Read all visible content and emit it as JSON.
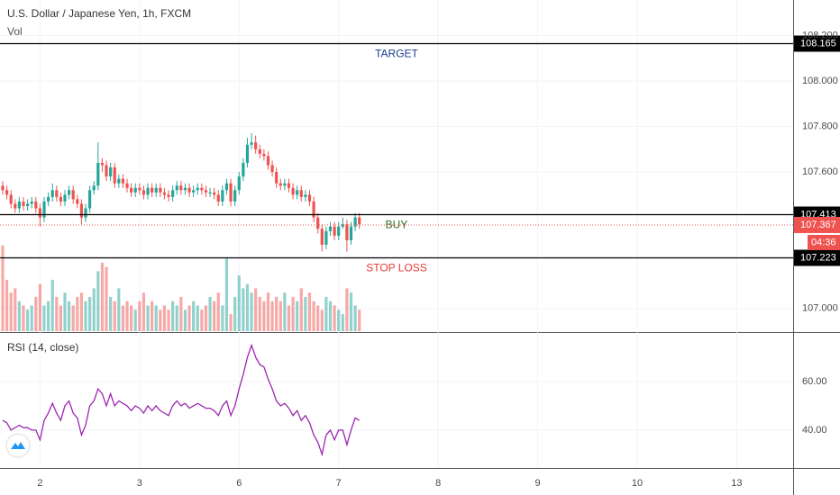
{
  "chart_data": {
    "type": "candlestick",
    "title": "U.S. Dollar / Japanese Yen, 1h, FXCM",
    "volume_label": "Vol",
    "up_color": "#26a69a",
    "down_color": "#ef5350",
    "grid": true,
    "xlim": [
      -0.65,
      190.6
    ],
    "xticks": [
      {
        "value": 9,
        "label": "2"
      },
      {
        "value": 33,
        "label": "3"
      },
      {
        "value": 57,
        "label": "6"
      },
      {
        "value": 81,
        "label": "7"
      },
      {
        "value": 105,
        "label": "8"
      },
      {
        "value": 129,
        "label": "9"
      },
      {
        "value": 153,
        "label": "10"
      },
      {
        "value": 177,
        "label": "13"
      }
    ],
    "ylim": [
      106.9,
      108.356
    ],
    "yticks": [
      {
        "value": 108.2,
        "label": "108.200"
      },
      {
        "value": 108.0,
        "label": "108.000"
      },
      {
        "value": 107.8,
        "label": "107.800"
      },
      {
        "value": 107.6,
        "label": "107.600"
      },
      {
        "value": 107.0,
        "label": "107.000"
      }
    ],
    "open": [
      107.54,
      107.52,
      107.5,
      107.46,
      107.44,
      107.47,
      107.45,
      107.46,
      107.47,
      107.44,
      107.4,
      107.47,
      107.49,
      107.52,
      107.49,
      107.47,
      107.5,
      107.52,
      107.48,
      107.46,
      107.4,
      107.44,
      107.52,
      107.54,
      107.64,
      107.63,
      107.58,
      107.62,
      107.55,
      107.57,
      107.55,
      107.53,
      107.51,
      107.53,
      107.52,
      107.5,
      107.53,
      107.51,
      107.53,
      107.51,
      107.5,
      107.49,
      107.52,
      107.54,
      107.52,
      107.53,
      107.51,
      107.52,
      107.53,
      107.52,
      107.51,
      107.51,
      107.5,
      107.47,
      107.52,
      107.55,
      107.47,
      107.52,
      107.58,
      107.64,
      107.72,
      107.73,
      107.7,
      107.68,
      107.67,
      107.63,
      107.6,
      107.55,
      107.54,
      107.55,
      107.53,
      107.5,
      107.52,
      107.49,
      107.5,
      107.47,
      107.4,
      107.35,
      107.28,
      107.34,
      107.36,
      107.32,
      107.36,
      107.37,
      107.3,
      107.36,
      107.4
    ],
    "high": [
      107.56,
      107.54,
      107.52,
      107.48,
      107.49,
      107.49,
      107.48,
      107.49,
      107.49,
      107.46,
      107.49,
      107.51,
      107.55,
      107.54,
      107.51,
      107.52,
      107.54,
      107.54,
      107.5,
      107.48,
      107.46,
      107.54,
      107.56,
      107.73,
      107.66,
      107.65,
      107.64,
      107.64,
      107.59,
      107.59,
      107.57,
      107.55,
      107.55,
      107.55,
      107.54,
      107.55,
      107.55,
      107.55,
      107.55,
      107.53,
      107.52,
      107.54,
      107.56,
      107.56,
      107.55,
      107.55,
      107.54,
      107.55,
      107.55,
      107.54,
      107.53,
      107.53,
      107.52,
      107.54,
      107.57,
      107.57,
      107.54,
      107.6,
      107.66,
      107.75,
      107.77,
      107.76,
      107.72,
      107.7,
      107.69,
      107.65,
      107.62,
      107.57,
      107.57,
      107.57,
      107.55,
      107.54,
      107.54,
      107.52,
      107.52,
      107.49,
      107.42,
      107.37,
      107.36,
      107.38,
      107.38,
      107.38,
      107.4,
      107.39,
      107.38,
      107.42,
      107.42
    ],
    "low": [
      107.5,
      107.48,
      107.44,
      107.42,
      107.42,
      107.43,
      107.43,
      107.44,
      107.42,
      107.36,
      107.38,
      107.45,
      107.47,
      107.47,
      107.45,
      107.45,
      107.48,
      107.46,
      107.44,
      107.37,
      107.38,
      107.42,
      107.5,
      107.52,
      107.6,
      107.56,
      107.56,
      107.53,
      107.53,
      107.53,
      107.51,
      107.49,
      107.49,
      107.5,
      107.48,
      107.48,
      107.49,
      107.49,
      107.49,
      107.48,
      107.47,
      107.47,
      107.5,
      107.5,
      107.5,
      107.49,
      107.49,
      107.5,
      107.5,
      107.49,
      107.49,
      107.48,
      107.45,
      107.45,
      107.5,
      107.45,
      107.45,
      107.5,
      107.56,
      107.62,
      107.7,
      107.68,
      107.66,
      107.65,
      107.61,
      107.58,
      107.53,
      107.52,
      107.52,
      107.51,
      107.48,
      107.48,
      107.47,
      107.47,
      107.45,
      107.38,
      107.33,
      107.25,
      107.26,
      107.32,
      107.3,
      107.3,
      107.35,
      107.25,
      107.28,
      107.34,
      107.35
    ],
    "close": [
      107.52,
      107.5,
      107.46,
      107.44,
      107.47,
      107.45,
      107.46,
      107.47,
      107.44,
      107.4,
      107.47,
      107.49,
      107.52,
      107.49,
      107.47,
      107.5,
      107.52,
      107.48,
      107.46,
      107.4,
      107.44,
      107.52,
      107.54,
      107.64,
      107.63,
      107.58,
      107.62,
      107.55,
      107.57,
      107.55,
      107.53,
      107.51,
      107.53,
      107.52,
      107.5,
      107.53,
      107.51,
      107.53,
      107.51,
      107.5,
      107.49,
      107.52,
      107.54,
      107.52,
      107.53,
      107.51,
      107.52,
      107.53,
      107.52,
      107.51,
      107.51,
      107.5,
      107.47,
      107.52,
      107.55,
      107.47,
      107.52,
      107.58,
      107.64,
      107.72,
      107.73,
      107.7,
      107.68,
      107.67,
      107.63,
      107.6,
      107.55,
      107.54,
      107.55,
      107.53,
      107.5,
      107.52,
      107.49,
      107.5,
      107.47,
      107.4,
      107.35,
      107.28,
      107.34,
      107.36,
      107.32,
      107.36,
      107.37,
      107.3,
      107.36,
      107.4,
      107.37
    ],
    "volume": [
      100,
      60,
      45,
      50,
      35,
      30,
      25,
      30,
      40,
      55,
      30,
      35,
      60,
      40,
      30,
      45,
      35,
      30,
      40,
      45,
      35,
      40,
      50,
      70,
      80,
      75,
      40,
      35,
      50,
      30,
      35,
      30,
      25,
      35,
      45,
      30,
      35,
      30,
      25,
      30,
      25,
      35,
      30,
      40,
      25,
      30,
      35,
      30,
      25,
      30,
      40,
      35,
      45,
      30,
      85,
      20,
      40,
      65,
      50,
      55,
      45,
      50,
      40,
      35,
      45,
      35,
      40,
      35,
      45,
      30,
      40,
      35,
      50,
      40,
      45,
      35,
      30,
      25,
      40,
      35,
      30,
      25,
      20,
      50,
      45,
      30,
      25
    ],
    "volume_lim": [
      0,
      105
    ],
    "levels": [
      {
        "name": "TARGET",
        "value": 108.165,
        "color": "#1a3d8f"
      },
      {
        "name": "BUY",
        "value": 107.413,
        "color": "#2e6b1f"
      },
      {
        "name": "STOP LOSS",
        "value": 107.223,
        "color": "#e53935"
      }
    ],
    "last_price": 107.367,
    "countdown": "04:36",
    "rsi": {
      "title": "RSI (14, close)",
      "color": "#9c27b0",
      "ylim": [
        24.4,
        80
      ],
      "yticks": [
        {
          "value": 60,
          "label": "60.00"
        },
        {
          "value": 40,
          "label": "40.00"
        }
      ],
      "values": [
        44,
        43,
        40,
        41,
        42,
        41,
        41,
        40,
        40,
        36,
        44,
        47,
        51,
        47,
        44,
        50,
        52,
        47,
        45,
        38,
        42,
        50,
        52,
        57,
        55,
        50,
        55,
        50,
        52,
        51,
        50,
        48,
        50,
        49,
        47,
        50,
        48,
        50,
        48,
        47,
        46,
        50,
        52,
        50,
        51,
        49,
        50,
        51,
        50,
        49,
        49,
        48,
        46,
        50,
        52,
        46,
        50,
        57,
        63,
        70,
        75,
        70,
        67,
        66,
        61,
        57,
        52,
        50,
        51,
        49,
        46,
        48,
        44,
        46,
        43,
        38,
        35,
        30,
        38,
        40,
        36,
        40,
        40,
        34,
        40,
        45,
        44
      ]
    }
  }
}
